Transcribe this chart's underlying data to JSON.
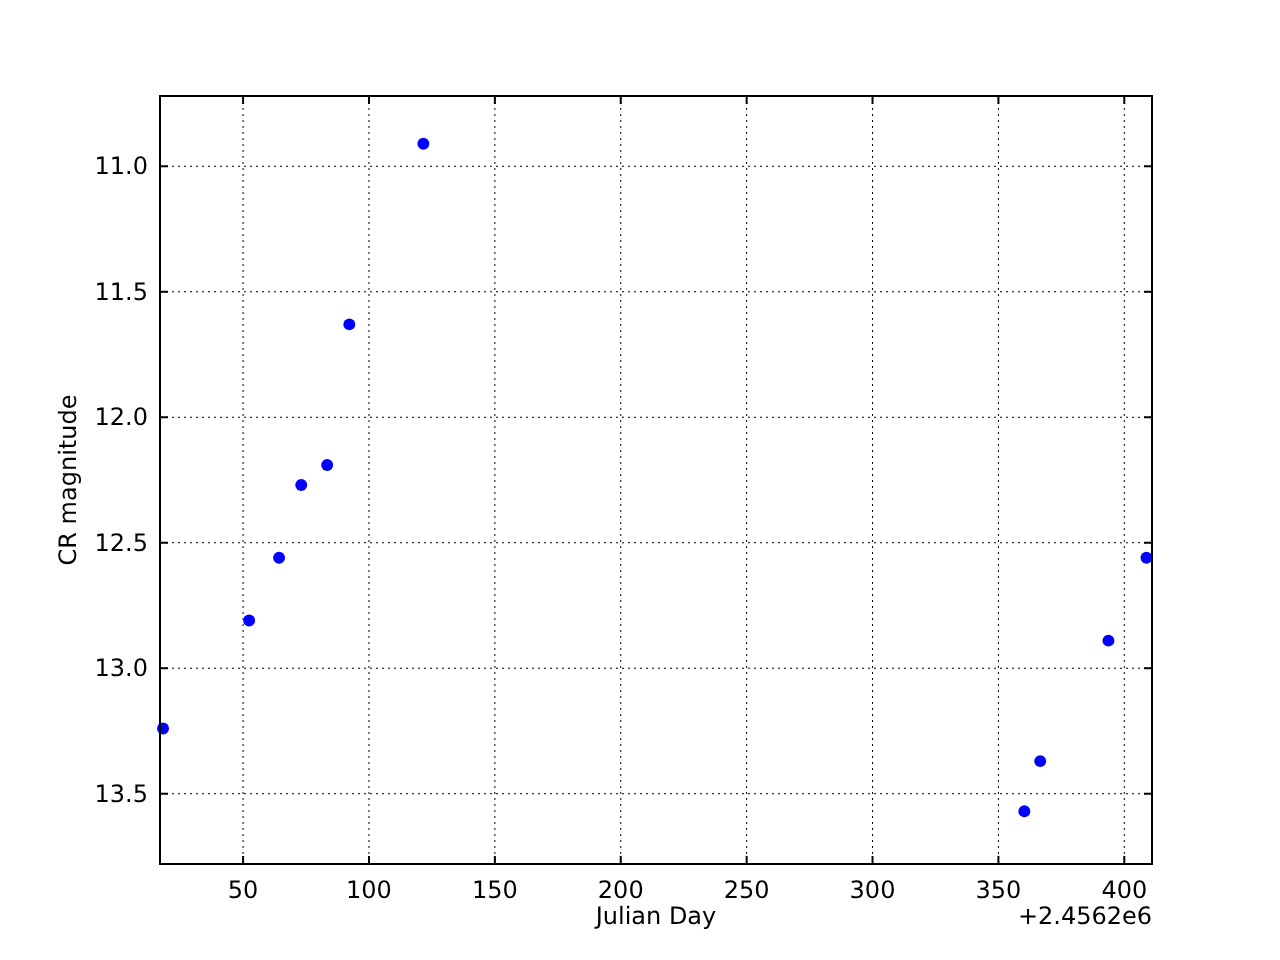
{
  "chart_data": {
    "type": "scatter",
    "xlabel": "Julian Day",
    "ylabel": "CR magnitude",
    "x": [
      18.2,
      52.4,
      64.3,
      73.1,
      83.4,
      92.2,
      121.6,
      360.3,
      366.6,
      393.7,
      408.8
    ],
    "series": [
      {
        "color": "#0000ff",
        "values": [
          13.24,
          12.81,
          12.56,
          12.27,
          12.19,
          11.63,
          10.91,
          13.57,
          13.37,
          12.89,
          12.56
        ]
      }
    ],
    "xlim": [
      17,
      411
    ],
    "xticks": [
      50,
      100,
      150,
      200,
      250,
      300,
      350,
      400
    ],
    "ylim": [
      13.78,
      10.72
    ],
    "yticks": [
      {
        "value": 11,
        "label": "11.0"
      },
      {
        "value": 11.5,
        "label": "11.5"
      },
      {
        "value": 12,
        "label": "12.0"
      },
      {
        "value": 12.5,
        "label": "12.5"
      },
      {
        "value": 13,
        "label": "13.0"
      },
      {
        "value": 13.5,
        "label": "13.5"
      }
    ],
    "annotations": [
      "+2.4562e6"
    ],
    "grid": true,
    "marker": "circle"
  }
}
